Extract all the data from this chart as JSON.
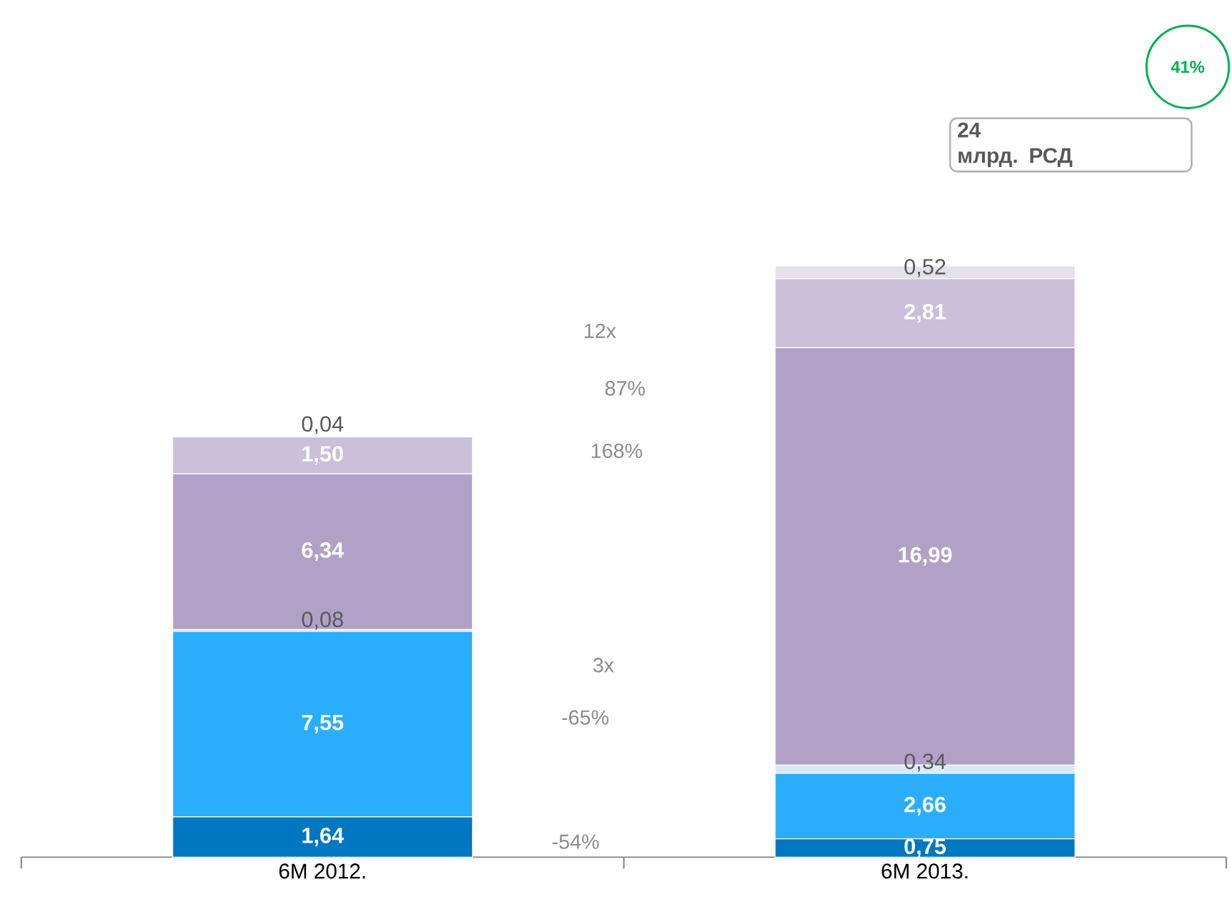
{
  "chart_data": {
    "type": "bar",
    "stacked": true,
    "categories": [
      "6М 2012.",
      "6М 2013."
    ],
    "series": [
      {
        "color": "#0077c0",
        "values": [
          1.64,
          0.75
        ],
        "value_labels": [
          "1,64",
          "0,75"
        ]
      },
      {
        "color": "#2aaefc",
        "values": [
          7.55,
          2.66
        ],
        "value_labels": [
          "7,55",
          "2,66"
        ]
      },
      {
        "color": "#d9ecf6",
        "values": [
          0.08,
          0.34
        ],
        "value_labels": [
          "0,08",
          "0,34"
        ]
      },
      {
        "color": "#b1a1c7",
        "values": [
          6.34,
          16.99
        ],
        "value_labels": [
          "6,34",
          "16,99"
        ]
      },
      {
        "color": "#cac0da",
        "values": [
          1.5,
          2.81
        ],
        "value_labels": [
          "1,50",
          "2,81"
        ]
      },
      {
        "color": "#e6e0ee",
        "values": [
          0.04,
          0.52
        ],
        "value_labels": [
          "0,04",
          "0,52"
        ]
      }
    ],
    "annotations": [
      "12x",
      "87%",
      "168%",
      "3x",
      "-65%",
      "-54%",
      "24",
      "млрд. РСД",
      "41%"
    ]
  }
}
